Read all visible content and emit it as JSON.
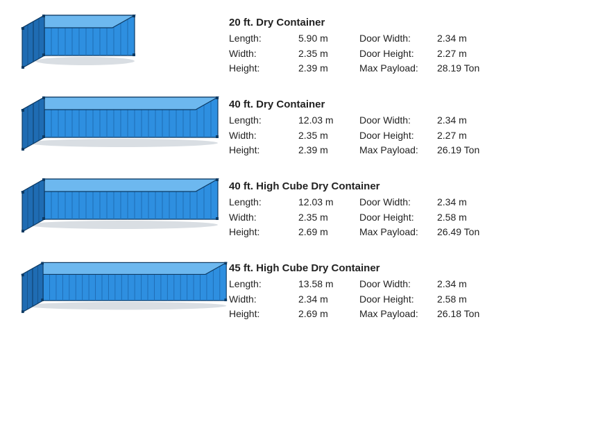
{
  "container_colors": {
    "side_fill": "#2e8fe0",
    "side_stroke": "#0d3a63",
    "top_fill": "#6db8ef",
    "front_fill": "#1f6cb3",
    "rib_stroke": "#1f6cb3"
  },
  "text_color": "#222222",
  "title_fontsize": 15,
  "body_fontsize": 14,
  "containers": [
    {
      "title": "20 ft. Dry Container",
      "svg_len": 130,
      "specs": {
        "length_label": "Length:",
        "length_value": "5.90 m",
        "width_label": "Width:",
        "width_value": "2.35 m",
        "height_label": "Height:",
        "height_value": "2.39 m",
        "door_width_label": "Door Width:",
        "door_width_value": "2.34 m",
        "door_height_label": "Door Height:",
        "door_height_value": "2.27 m",
        "payload_label": "Max Payload:",
        "payload_value": "28.19 Ton"
      }
    },
    {
      "title": "40 ft. Dry Container",
      "svg_len": 250,
      "specs": {
        "length_label": "Length:",
        "length_value": "12.03 m",
        "width_label": "Width:",
        "width_value": "2.35 m",
        "height_label": "Height:",
        "height_value": "2.39 m",
        "door_width_label": "Door Width:",
        "door_width_value": "2.34 m",
        "door_height_label": "Door Height:",
        "door_height_value": "2.27 m",
        "payload_label": "Max Payload:",
        "payload_value": "26.19 Ton"
      }
    },
    {
      "title": "40 ft. High Cube Dry Container",
      "svg_len": 250,
      "specs": {
        "length_label": "Length:",
        "length_value": "12.03 m",
        "width_label": "Width:",
        "width_value": "2.35 m",
        "height_label": "Height:",
        "height_value": "2.69 m",
        "door_width_label": "Door Width:",
        "door_width_value": "2.34 m",
        "door_height_label": "Door Height:",
        "door_height_value": "2.58 m",
        "payload_label": "Max Payload:",
        "payload_value": "26.49 Ton"
      }
    },
    {
      "title": "45 ft. High Cube Dry Container",
      "svg_len": 280,
      "specs": {
        "length_label": "Length:",
        "length_value": "13.58 m",
        "width_label": "Width:",
        "width_value": "2.34 m",
        "height_label": "Height:",
        "height_value": "2.69 m",
        "door_width_label": "Door Width:",
        "door_width_value": "2.34 m",
        "door_height_label": "Door Height:",
        "door_height_value": "2.58 m",
        "payload_label": "Max Payload:",
        "payload_value": "26.18 Ton"
      }
    }
  ]
}
